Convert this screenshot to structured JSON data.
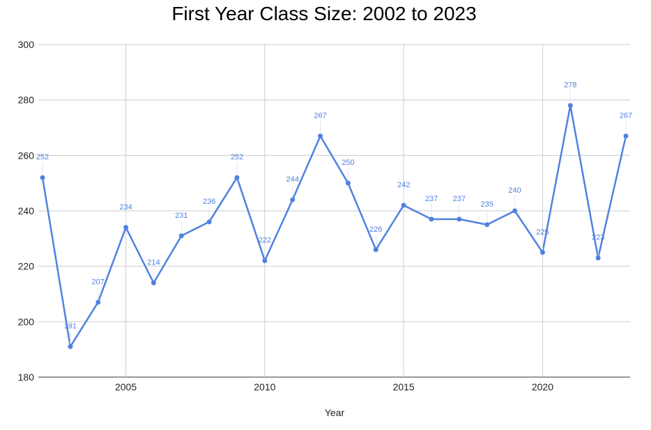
{
  "chart_data": {
    "type": "line",
    "title": "First Year Class Size: 2002 to 2023",
    "xlabel": "Year",
    "ylabel": "",
    "xlim": [
      2002,
      2023
    ],
    "ylim": [
      180,
      300
    ],
    "x_ticks": [
      2005,
      2010,
      2015,
      2020
    ],
    "y_ticks": [
      180,
      200,
      220,
      240,
      260,
      280,
      300
    ],
    "grid": true,
    "line_color": "#4f81e0",
    "series": [
      {
        "x": [
          2002,
          2003,
          2004,
          2005,
          2006,
          2007,
          2008,
          2009,
          2010,
          2011,
          2012,
          2013,
          2014,
          2015,
          2016,
          2017,
          2018,
          2019,
          2020,
          2021,
          2022,
          2023
        ],
        "values": [
          252,
          191,
          207,
          234,
          214,
          231,
          236,
          252,
          222,
          244,
          267,
          250,
          226,
          242,
          237,
          237,
          235,
          240,
          225,
          278,
          223,
          267
        ]
      }
    ]
  }
}
